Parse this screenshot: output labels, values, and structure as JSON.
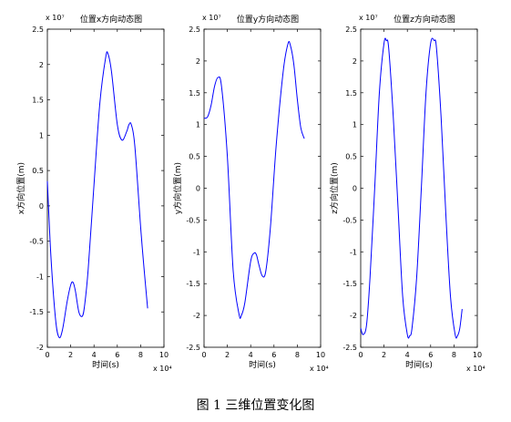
{
  "caption": "图 1  三维位置变化图",
  "chart_data": [
    {
      "type": "line",
      "title": "位置x方向动态图",
      "xlabel": "时间(s)",
      "ylabel": "x方向位置(m)",
      "x_exponent": "x 10⁴",
      "y_exponent": "x 10⁷",
      "xlim": [
        0,
        10
      ],
      "ylim": [
        -2,
        2.5
      ],
      "xticks": [
        "0",
        "2",
        "4",
        "6",
        "8",
        "10"
      ],
      "yticks": [
        "-2",
        "-1.5",
        "-1",
        "-0.5",
        "0",
        "0.5",
        "1",
        "1.5",
        "2",
        "2.5"
      ],
      "line_color": "#0000ff",
      "series": [
        {
          "x": [
            0,
            0.3,
            0.7,
            1.0,
            1.3,
            1.7,
            2.0,
            2.2,
            2.4,
            2.7,
            3.0,
            3.2,
            3.5,
            4.0,
            4.5,
            5.0,
            5.2,
            5.5,
            6.0,
            6.4,
            6.8,
            7.0,
            7.2,
            7.5,
            8.0,
            8.3,
            8.6
          ],
          "y": [
            0.35,
            -0.7,
            -1.6,
            -1.86,
            -1.75,
            -1.35,
            -1.12,
            -1.08,
            -1.2,
            -1.5,
            -1.56,
            -1.4,
            -0.9,
            0.3,
            1.45,
            2.1,
            2.15,
            1.9,
            1.15,
            0.93,
            1.05,
            1.15,
            1.15,
            0.85,
            -0.3,
            -0.9,
            -1.45
          ]
        }
      ]
    },
    {
      "type": "line",
      "title": "位置y方向动态图",
      "xlabel": "时间(s)",
      "ylabel": "y方向位置(m)",
      "x_exponent": "x 10⁴",
      "y_exponent": "x 10⁷",
      "xlim": [
        0,
        10
      ],
      "ylim": [
        -2.5,
        2.5
      ],
      "xticks": [
        "0",
        "2",
        "4",
        "6",
        "8",
        "10"
      ],
      "yticks": [
        "-2.5",
        "-2",
        "-1.5",
        "-1",
        "-0.5",
        "0",
        "0.5",
        "1",
        "1.5",
        "2",
        "2.5"
      ],
      "line_color": "#0000ff",
      "series": [
        {
          "x": [
            0,
            0.3,
            0.6,
            0.9,
            1.2,
            1.5,
            2.0,
            2.5,
            3.0,
            3.2,
            3.5,
            4.0,
            4.3,
            4.5,
            4.7,
            5.0,
            5.3,
            5.7,
            6.2,
            6.8,
            7.2,
            7.4,
            7.7,
            8.0,
            8.3,
            8.6
          ],
          "y": [
            1.1,
            1.12,
            1.3,
            1.6,
            1.74,
            1.6,
            0.5,
            -1.3,
            -1.98,
            -2.0,
            -1.8,
            -1.15,
            -1.02,
            -1.05,
            -1.2,
            -1.38,
            -1.3,
            -0.6,
            0.7,
            1.85,
            2.27,
            2.25,
            1.95,
            1.4,
            0.95,
            0.78
          ]
        }
      ]
    },
    {
      "type": "line",
      "title": "位置z方向动态图",
      "xlabel": "时间(s)",
      "ylabel": "z方向位置(m)",
      "x_exponent": "x 10⁴",
      "y_exponent": "x 10⁷",
      "xlim": [
        0,
        10
      ],
      "ylim": [
        -2.5,
        2.5
      ],
      "xticks": [
        "0",
        "2",
        "4",
        "6",
        "8",
        "10"
      ],
      "yticks": [
        "-2.5",
        "-2",
        "-1.5",
        "-1",
        "-0.5",
        "0",
        "0.5",
        "1",
        "1.5",
        "2",
        "2.5"
      ],
      "line_color": "#0000ff",
      "series": [
        {
          "x": [
            0,
            0.2,
            0.5,
            0.8,
            1.2,
            1.6,
            2.0,
            2.2,
            2.4,
            2.8,
            3.2,
            3.6,
            4.0,
            4.2,
            4.4,
            4.8,
            5.2,
            5.6,
            6.0,
            6.3,
            6.5,
            6.9,
            7.3,
            7.7,
            8.1,
            8.3,
            8.5,
            8.7
          ],
          "y": [
            -2.2,
            -2.3,
            -2.15,
            -1.4,
            0.0,
            1.5,
            2.28,
            2.32,
            2.2,
            1.1,
            -0.3,
            -1.7,
            -2.3,
            -2.32,
            -2.2,
            -1.4,
            0.0,
            1.5,
            2.28,
            2.32,
            2.2,
            1.1,
            -0.4,
            -1.7,
            -2.3,
            -2.32,
            -2.2,
            -1.9
          ]
        }
      ]
    }
  ]
}
